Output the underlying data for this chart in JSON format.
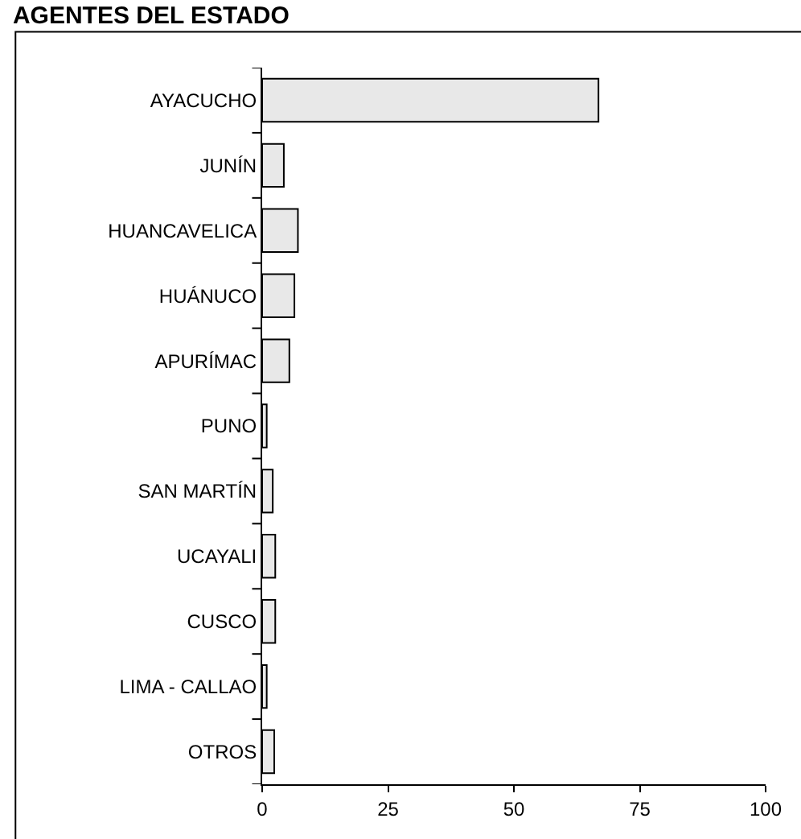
{
  "chart_data": {
    "type": "bar",
    "title": "AGENTES DEL ESTADO",
    "orientation": "horizontal",
    "categories": [
      "AYACUCHO",
      "JUNÍN",
      "HUANCAVELICA",
      "HUÁNUCO",
      "APURÍMAC",
      "PUNO",
      "SAN MARTÍN",
      "UCAYALI",
      "CUSCO",
      "LIMA - CALLAO",
      "OTROS"
    ],
    "values": [
      66.8,
      4.3,
      7.1,
      6.4,
      5.4,
      0.9,
      2.1,
      2.6,
      2.6,
      0.9,
      2.4
    ],
    "color": "#e8e8e8",
    "xlim": [
      0,
      100
    ],
    "xticks": [
      0,
      25,
      50,
      75,
      100
    ],
    "grid": false
  }
}
